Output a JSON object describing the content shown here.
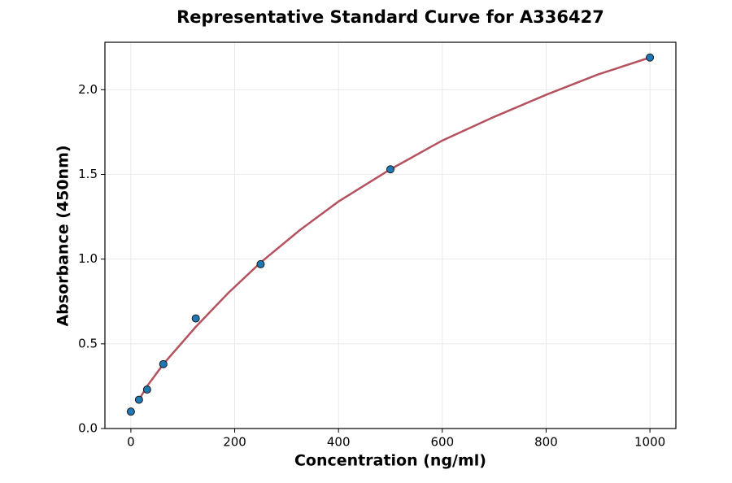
{
  "chart_data": {
    "type": "scatter",
    "title": "Representative Standard Curve for A336427",
    "xlabel": "Concentration (ng/ml)",
    "ylabel": "Absorbance (450nm)",
    "xlim": [
      -50,
      1050
    ],
    "ylim": [
      0,
      2.28
    ],
    "xticks": [
      0,
      200,
      400,
      600,
      800,
      1000
    ],
    "yticks": [
      {
        "value": 0,
        "label": "0.0"
      },
      {
        "value": 0.5,
        "label": "0.5"
      },
      {
        "value": 1,
        "label": "1.0"
      },
      {
        "value": 1.5,
        "label": "1.5"
      },
      {
        "value": 2,
        "label": "2.0"
      }
    ],
    "grid": true,
    "series": [
      {
        "style": "line",
        "color": "#b5525f",
        "x": [
          15.625,
          31.25,
          62.5,
          125,
          187.5,
          250,
          325,
          400,
          500,
          600,
          700,
          800,
          900,
          1000
        ],
        "values": [
          0.17,
          0.25,
          0.38,
          0.6,
          0.8,
          0.98,
          1.17,
          1.34,
          1.53,
          1.7,
          1.84,
          1.97,
          2.09,
          2.19
        ]
      },
      {
        "style": "markers",
        "color": "#1f77b4",
        "x": [
          0,
          15.625,
          31.25,
          62.5,
          125,
          250,
          500,
          1000
        ],
        "values": [
          0.1,
          0.17,
          0.23,
          0.38,
          0.65,
          0.97,
          1.53,
          2.19
        ]
      }
    ]
  }
}
